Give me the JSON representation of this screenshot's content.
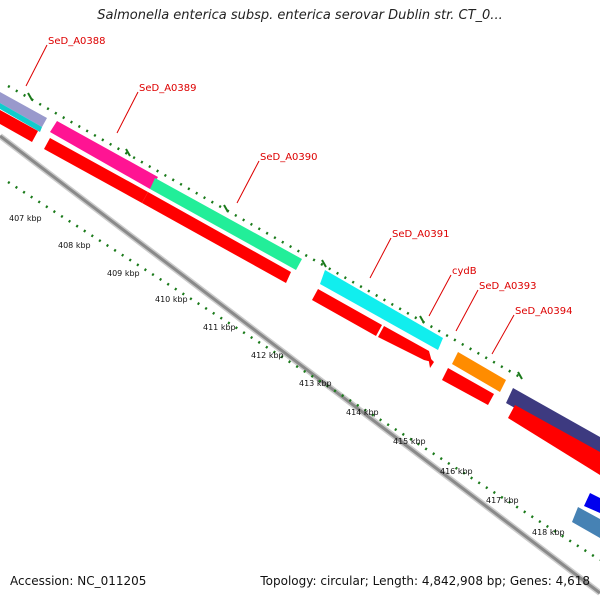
{
  "title": "Salmonella enterica subsp. enterica serovar Dublin str. CT_0...",
  "footer": {
    "accession": "Accession: NC_011205",
    "summary": "Topology: circular; Length: 4,842,908 bp; Genes: 4,618"
  },
  "colors": {
    "label": "#dd0000",
    "ticks": "#1a7a1a",
    "backbone": "#888888",
    "cds": "#ff0000"
  },
  "scale_labels": [
    "407 kbp",
    "408 kbp",
    "409 kbp",
    "410 kbp",
    "411 kbp",
    "412 kbp",
    "413 kbp",
    "414 kbp",
    "415 kbp",
    "416 kbp",
    "417 kbp",
    "418 kbp"
  ],
  "genes": [
    {
      "label": "SeD_A0388",
      "color": "#9999cc"
    },
    {
      "label": "SeD_A0389",
      "color": "#ff1493"
    },
    {
      "label": "SeD_A0390",
      "color": "#22ee99"
    },
    {
      "label": "SeD_A0391",
      "color": "#11eeee"
    },
    {
      "label": "cydB",
      "color": "#11eeee"
    },
    {
      "label": "SeD_A0393",
      "color": "#ff8c00"
    },
    {
      "label": "SeD_A0394",
      "color": "#3d3a80"
    },
    {
      "label": "",
      "color": "#4682b4"
    }
  ]
}
